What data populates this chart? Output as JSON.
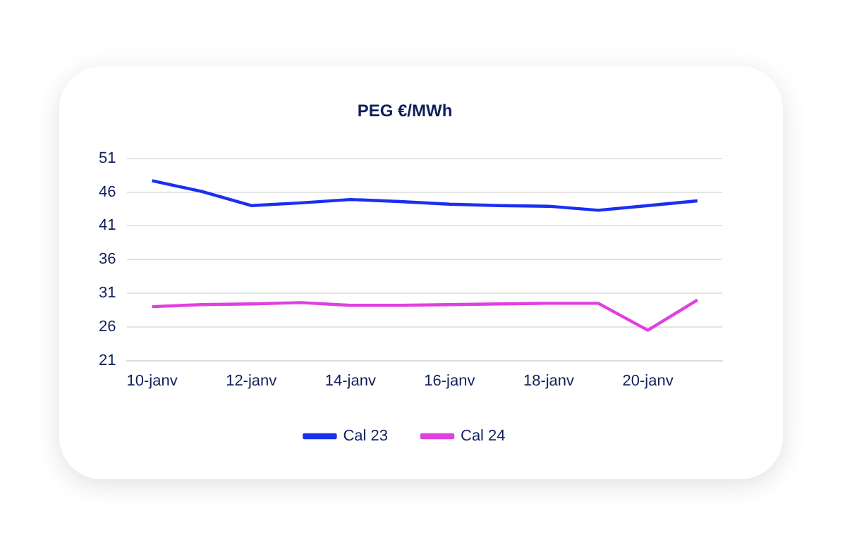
{
  "chart_data": {
    "type": "line",
    "title": "PEG €/MWh",
    "categories": [
      "10-janv",
      null,
      "12-janv",
      null,
      "14-janv",
      null,
      "16-janv",
      null,
      "18-janv",
      null,
      "20-janv",
      null
    ],
    "series": [
      {
        "name": "Cal 23",
        "color": "#1a2ff0",
        "values": [
          47.7,
          46.1,
          44.0,
          44.4,
          44.9,
          44.6,
          44.2,
          44.0,
          43.9,
          43.3,
          44.0,
          44.7
        ]
      },
      {
        "name": "Cal 24",
        "color": "#e040e0",
        "values": [
          29.0,
          29.3,
          29.4,
          29.6,
          29.2,
          29.2,
          29.3,
          29.4,
          29.5,
          29.5,
          25.5,
          30.0
        ]
      }
    ],
    "ylim": [
      21,
      51
    ],
    "yticks": [
      21,
      26,
      31,
      36,
      41,
      46,
      51
    ],
    "grid": "y",
    "legend": "bottom",
    "marker": "none",
    "line_style": "solid"
  }
}
